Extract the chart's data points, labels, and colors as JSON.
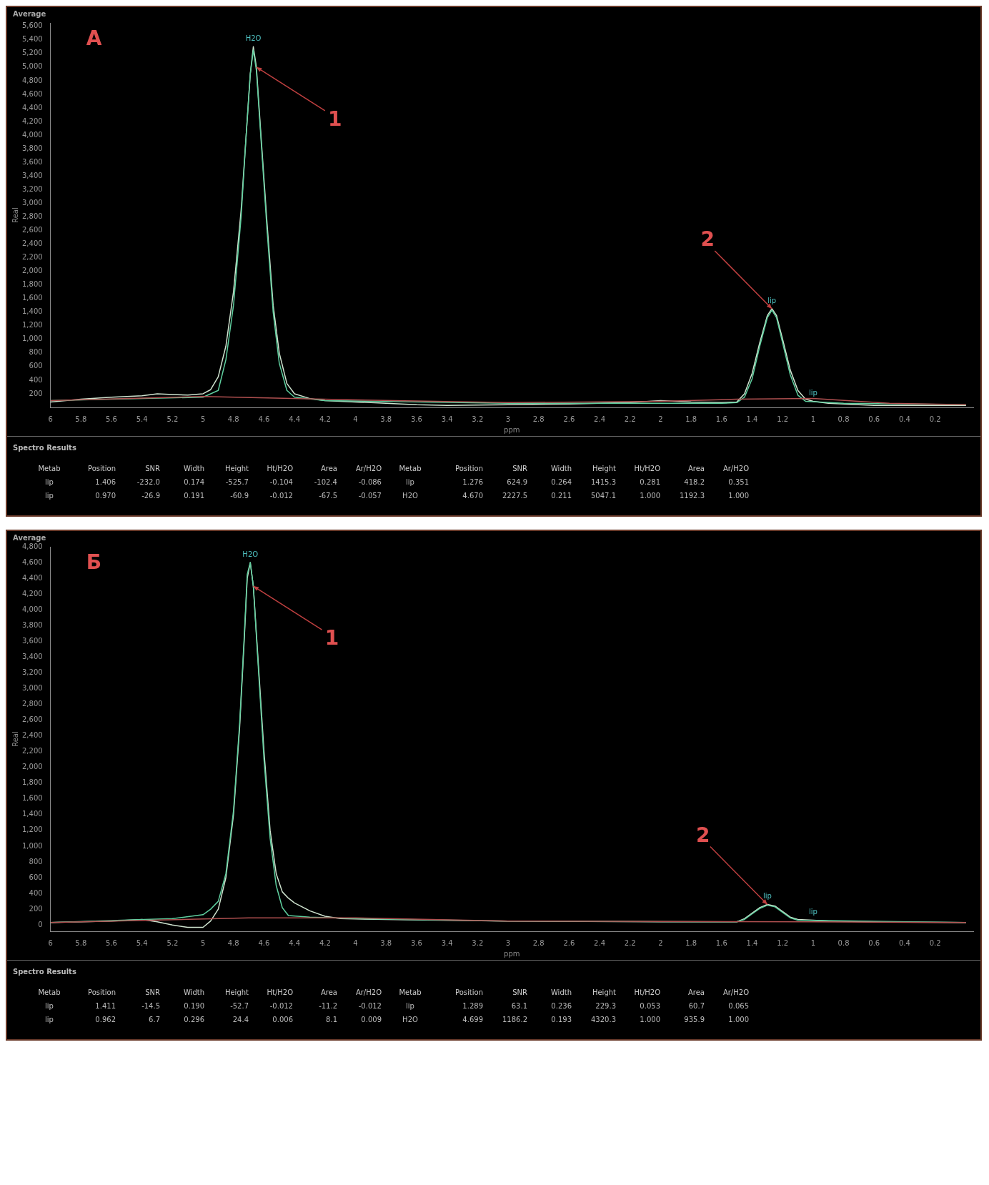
{
  "chart_data": [
    {
      "type": "line",
      "title": "А",
      "subtitle": "Average",
      "xlabel": "ppm",
      "ylabel": "Real",
      "legend": false,
      "grid": false,
      "xlim": [
        6,
        -0.05
      ],
      "xticks": [
        6,
        5.8,
        5.6,
        5.4,
        5.2,
        5,
        4.8,
        4.6,
        4.4,
        4.2,
        4,
        3.8,
        3.6,
        3.4,
        3.2,
        3,
        2.8,
        2.6,
        2.4,
        2.2,
        2,
        1.8,
        1.6,
        1.4,
        1.2,
        1,
        0.8,
        0.6,
        0.4,
        0.2
      ],
      "ylim": [
        0,
        5650
      ],
      "yticks": [
        {
          "value": 200,
          "label": "200"
        },
        {
          "value": 400,
          "label": "400"
        },
        {
          "value": 600,
          "label": "600"
        },
        {
          "value": 800,
          "label": "800"
        },
        {
          "value": 1000,
          "label": "1,000"
        },
        {
          "value": 1200,
          "label": "1,200"
        },
        {
          "value": 1400,
          "label": "1,400"
        },
        {
          "value": 1600,
          "label": "1,600"
        },
        {
          "value": 1800,
          "label": "1,800"
        },
        {
          "value": 2000,
          "label": "2,000"
        },
        {
          "value": 2200,
          "label": "2,200"
        },
        {
          "value": 2400,
          "label": "2,400"
        },
        {
          "value": 2600,
          "label": "2,600"
        },
        {
          "value": 2800,
          "label": "2,800"
        },
        {
          "value": 3000,
          "label": "3,000"
        },
        {
          "value": 3200,
          "label": "3,200"
        },
        {
          "value": 3400,
          "label": "3,400"
        },
        {
          "value": 3600,
          "label": "3,600"
        },
        {
          "value": 3800,
          "label": "3,800"
        },
        {
          "value": 4000,
          "label": "4,000"
        },
        {
          "value": 4200,
          "label": "4,200"
        },
        {
          "value": 4400,
          "label": "4,400"
        },
        {
          "value": 4600,
          "label": "4,600"
        },
        {
          "value": 4800,
          "label": "4,800"
        },
        {
          "value": 5000,
          "label": "5,000"
        },
        {
          "value": 5200,
          "label": "5,200"
        },
        {
          "value": 5400,
          "label": "5,400"
        },
        {
          "value": 5600,
          "label": "5,600"
        }
      ],
      "series": [
        {
          "type": "line",
          "color": "#cfe3cf",
          "x": [
            6,
            5.8,
            5.6,
            5.4,
            5.3,
            5.2,
            5.1,
            5,
            4.95,
            4.9,
            4.85,
            4.8,
            4.75,
            4.72,
            4.69,
            4.67,
            4.65,
            4.62,
            4.58,
            4.54,
            4.5,
            4.45,
            4.4,
            4.3,
            4.2,
            4,
            3.8,
            3.6,
            3.4,
            3,
            2.6,
            2.2,
            2,
            1.8,
            1.6,
            1.5,
            1.45,
            1.4,
            1.35,
            1.3,
            1.27,
            1.24,
            1.2,
            1.15,
            1.1,
            1.05,
            1,
            0.9,
            0.6,
            0.2,
            0
          ],
          "values": [
            80,
            120,
            150,
            170,
            200,
            190,
            180,
            200,
            260,
            450,
            900,
            1700,
            2900,
            3900,
            4900,
            5300,
            5000,
            4000,
            2700,
            1500,
            800,
            350,
            200,
            130,
            100,
            80,
            60,
            40,
            30,
            40,
            50,
            70,
            100,
            80,
            70,
            80,
            200,
            500,
            950,
            1350,
            1450,
            1350,
            1000,
            550,
            250,
            120,
            90,
            60,
            30,
            30,
            30
          ]
        },
        {
          "type": "line",
          "color": "#5fcf9f",
          "x": [
            6,
            5,
            4.9,
            4.85,
            4.8,
            4.75,
            4.72,
            4.69,
            4.67,
            4.65,
            4.62,
            4.58,
            4.54,
            4.5,
            4.45,
            4.4,
            4.2,
            3,
            1.6,
            1.5,
            1.45,
            1.4,
            1.35,
            1.3,
            1.27,
            1.24,
            1.2,
            1.15,
            1.1,
            1.05,
            0.8,
            0
          ],
          "values": [
            100,
            150,
            250,
            700,
            1500,
            2800,
            3900,
            4900,
            5250,
            4950,
            3950,
            2600,
            1400,
            650,
            250,
            150,
            100,
            60,
            60,
            70,
            150,
            420,
            900,
            1320,
            1430,
            1320,
            950,
            480,
            180,
            90,
            60,
            40
          ]
        },
        {
          "type": "line",
          "color": "#b05050",
          "x": [
            6,
            5,
            4,
            3,
            2,
            1.5,
            1,
            0.5,
            0
          ],
          "values": [
            100,
            160,
            110,
            70,
            90,
            120,
            130,
            60,
            40
          ]
        }
      ],
      "annotations": [
        {
          "text": "1",
          "x": 4.65,
          "y": 5000
        },
        {
          "text": "2",
          "x": 1.27,
          "y": 1450
        },
        {
          "text": "H2O",
          "x": 4.67,
          "y": 5300
        },
        {
          "text": "lip",
          "x": 1.27,
          "y": 1450
        },
        {
          "text": "lip",
          "x": 1,
          "y": 90
        },
        "Spectro Results",
        "Metab",
        "Position",
        "SNR",
        "Width",
        "Height",
        "Ht/H2O",
        "Area",
        "Ar/H2O",
        "Metab",
        "Position",
        "SNR",
        "Width",
        "Height",
        "Ht/H2O",
        "Area",
        "Ar/H2O",
        "lip",
        "1.406",
        "-232.0",
        "0.174",
        "-525.7",
        "-0.104",
        "-102.4",
        "-0.086",
        "lip",
        "1.276",
        "624.9",
        "0.264",
        "1415.3",
        "0.281",
        "418.2",
        "0.351",
        "lip",
        "0.970",
        "-26.9",
        "0.191",
        "-60.9",
        "-0.012",
        "-67.5",
        "-0.057",
        "H2O",
        "4.670",
        "2227.5",
        "0.211",
        "5047.1",
        "1.000",
        "1192.3",
        "1.000"
      ]
    },
    {
      "type": "line",
      "title": "Б",
      "subtitle": "Average",
      "xlabel": "ppm",
      "ylabel": "Real",
      "legend": false,
      "grid": false,
      "xlim": [
        6,
        -0.05
      ],
      "xticks": [
        6,
        5.8,
        5.6,
        5.4,
        5.2,
        5,
        4.8,
        4.6,
        4.4,
        4.2,
        4,
        3.8,
        3.6,
        3.4,
        3.2,
        3,
        2.8,
        2.6,
        2.4,
        2.2,
        2,
        1.8,
        1.6,
        1.4,
        1.2,
        1,
        0.8,
        0.6,
        0.4,
        0.2
      ],
      "ylim": [
        -80,
        4800
      ],
      "yticks": [
        0,
        200,
        400,
        600,
        800,
        {
          "value": 1000,
          "label": "1,000"
        },
        {
          "value": 1200,
          "label": "1,200"
        },
        {
          "value": 1400,
          "label": "1,400"
        },
        {
          "value": 1600,
          "label": "1,600"
        },
        {
          "value": 1800,
          "label": "1,800"
        },
        {
          "value": 2000,
          "label": "2,000"
        },
        {
          "value": 2200,
          "label": "2,200"
        },
        {
          "value": 2400,
          "label": "2,400"
        },
        {
          "value": 2600,
          "label": "2,600"
        },
        {
          "value": 2800,
          "label": "2,800"
        },
        {
          "value": 3000,
          "label": "3,000"
        },
        {
          "value": 3200,
          "label": "3,200"
        },
        {
          "value": 3400,
          "label": "3,400"
        },
        {
          "value": 3600,
          "label": "3,600"
        },
        {
          "value": 3800,
          "label": "3,800"
        },
        {
          "value": 4000,
          "label": "4,000"
        },
        {
          "value": 4200,
          "label": "4,200"
        },
        {
          "value": 4400,
          "label": "4,400"
        },
        {
          "value": 4600,
          "label": "4,600"
        },
        {
          "value": 4800,
          "label": "4,800"
        }
      ],
      "series": [
        {
          "type": "line",
          "color": "#cfe3cf",
          "x": [
            6,
            5.6,
            5.4,
            5.3,
            5.2,
            5.1,
            5,
            4.95,
            4.9,
            4.85,
            4.8,
            4.76,
            4.73,
            4.71,
            4.69,
            4.67,
            4.64,
            4.6,
            4.56,
            4.52,
            4.48,
            4.44,
            4.4,
            4.3,
            4.2,
            4.1,
            3.8,
            3,
            2,
            1.6,
            1.5,
            1.45,
            1.4,
            1.35,
            1.3,
            1.25,
            1.2,
            1.15,
            1.1,
            1,
            0.9,
            0.6,
            0
          ],
          "values": [
            30,
            50,
            70,
            40,
            0,
            -30,
            -30,
            50,
            200,
            600,
            1400,
            2500,
            3600,
            4400,
            4600,
            4300,
            3400,
            2200,
            1200,
            650,
            420,
            340,
            280,
            180,
            110,
            80,
            70,
            50,
            40,
            40,
            40,
            80,
            150,
            220,
            260,
            240,
            170,
            100,
            70,
            60,
            50,
            40,
            30
          ]
        },
        {
          "type": "line",
          "color": "#5fcf9f",
          "x": [
            6,
            5.2,
            5,
            4.95,
            4.9,
            4.85,
            4.8,
            4.76,
            4.73,
            4.71,
            4.69,
            4.67,
            4.64,
            4.6,
            4.56,
            4.52,
            4.48,
            4.44,
            4.3,
            4,
            3,
            1.5,
            1.45,
            1.4,
            1.35,
            1.3,
            1.25,
            1.2,
            1.15,
            1.1,
            0
          ],
          "values": [
            30,
            80,
            130,
            200,
            300,
            650,
            1450,
            2550,
            3650,
            4450,
            4600,
            4300,
            3350,
            2100,
            1100,
            500,
            220,
            120,
            100,
            80,
            50,
            40,
            70,
            140,
            210,
            250,
            230,
            160,
            90,
            60,
            30
          ]
        },
        {
          "type": "line",
          "color": "#b05050",
          "x": [
            6,
            4.7,
            4,
            3,
            1,
            0
          ],
          "values": [
            30,
            90,
            90,
            50,
            40,
            30
          ]
        }
      ],
      "annotations": [
        {
          "text": "1",
          "x": 4.67,
          "y": 4300
        },
        {
          "text": "2",
          "x": 1.3,
          "y": 260
        },
        {
          "text": "H2O",
          "x": 4.69,
          "y": 4600
        },
        {
          "text": "lip",
          "x": 1.3,
          "y": 260
        },
        {
          "text": "lip",
          "x": 1,
          "y": 60
        },
        "Spectro Results",
        "Metab",
        "Position",
        "SNR",
        "Width",
        "Height",
        "Ht/H2O",
        "Area",
        "Ar/H2O",
        "Metab",
        "Position",
        "SNR",
        "Width",
        "Height",
        "Ht/H2O",
        "Area",
        "Ar/H2O",
        "lip",
        "1.411",
        "-14.5",
        "0.190",
        "-52.7",
        "-0.012",
        "-11.2",
        "-0.012",
        "lip",
        "1.289",
        "63.1",
        "0.236",
        "229.3",
        "0.053",
        "60.7",
        "0.065",
        "lip",
        "0.962",
        "6.7",
        "0.296",
        "24.4",
        "0.006",
        "8.1",
        "0.009",
        "H2O",
        "4.699",
        "1186.2",
        "0.193",
        "4320.3",
        "1.000",
        "935.9",
        "1.000"
      ]
    }
  ]
}
